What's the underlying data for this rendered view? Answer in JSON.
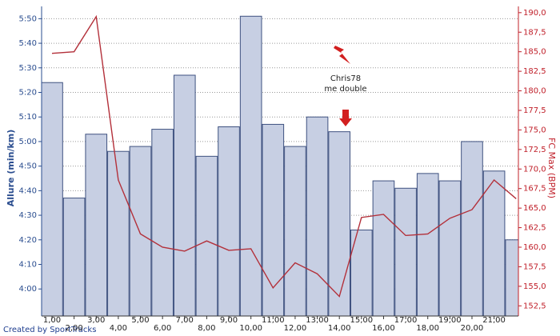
{
  "chart_data": {
    "type": "bar",
    "ylabel": "Allure (min/km)",
    "y2label": "FC Max (BPM)",
    "x": [
      1,
      2,
      3,
      4,
      5,
      6,
      7,
      8,
      9,
      10,
      11,
      12,
      13,
      14,
      15,
      16,
      17,
      18,
      19,
      20,
      21,
      22
    ],
    "xlim": [
      0.53,
      22.1
    ],
    "xticks": [
      {
        "value": 1,
        "label": "1,00"
      },
      {
        "value": 2,
        "label": "2,00"
      },
      {
        "value": 3,
        "label": "3,00"
      },
      {
        "value": 4,
        "label": "4,00"
      },
      {
        "value": 5,
        "label": "5,00"
      },
      {
        "value": 6,
        "label": "6,00"
      },
      {
        "value": 7,
        "label": "7,00"
      },
      {
        "value": 8,
        "label": "8,00"
      },
      {
        "value": 9,
        "label": "9,00"
      },
      {
        "value": 10,
        "label": "10,00"
      },
      {
        "value": 11,
        "label": "11,00"
      },
      {
        "value": 12,
        "label": "12,00"
      },
      {
        "value": 13,
        "label": "13,00"
      },
      {
        "value": 14,
        "label": "14,00"
      },
      {
        "value": 15,
        "label": "15,00"
      },
      {
        "value": 16,
        "label": "16,00"
      },
      {
        "value": 17,
        "label": "17,00"
      },
      {
        "value": 18,
        "label": "18,00"
      },
      {
        "value": 19,
        "label": "19,00"
      },
      {
        "value": 20,
        "label": "20,00"
      },
      {
        "value": 21,
        "label": "21,00"
      }
    ],
    "ylim": [
      229,
      355
    ],
    "yticks": [
      {
        "value": 240,
        "label": "4:00"
      },
      {
        "value": 250,
        "label": "4:10"
      },
      {
        "value": 260,
        "label": "4:20"
      },
      {
        "value": 270,
        "label": "4:30"
      },
      {
        "value": 280,
        "label": "4:40"
      },
      {
        "value": 290,
        "label": "4:50"
      },
      {
        "value": 300,
        "label": "5:00"
      },
      {
        "value": 310,
        "label": "5:10"
      },
      {
        "value": 320,
        "label": "5:20"
      },
      {
        "value": 330,
        "label": "5:30"
      },
      {
        "value": 340,
        "label": "5:40"
      },
      {
        "value": 350,
        "label": "5:50"
      }
    ],
    "y2lim": [
      151.2,
      190.8
    ],
    "y2ticks": [
      {
        "value": 152.5,
        "label": "152,5"
      },
      {
        "value": 155,
        "label": "155,0"
      },
      {
        "value": 157.5,
        "label": "157,5"
      },
      {
        "value": 160,
        "label": "160,0"
      },
      {
        "value": 162.5,
        "label": "162,5"
      },
      {
        "value": 165,
        "label": "165,0"
      },
      {
        "value": 167.5,
        "label": "167,5"
      },
      {
        "value": 170,
        "label": "170,0"
      },
      {
        "value": 172.5,
        "label": "172,5"
      },
      {
        "value": 175,
        "label": "175,0"
      },
      {
        "value": 177.5,
        "label": "177,5"
      },
      {
        "value": 180,
        "label": "180,0"
      },
      {
        "value": 182.5,
        "label": "182,5"
      },
      {
        "value": 185,
        "label": "185,0"
      },
      {
        "value": 187.5,
        "label": "187,5"
      },
      {
        "value": 190,
        "label": "190,0"
      }
    ],
    "grid": true,
    "series": [
      {
        "type": "bar",
        "color": "#c7cfe3",
        "edge": "#3f5280",
        "values": [
          324,
          277,
          303,
          296,
          298,
          305,
          327,
          294,
          306,
          351,
          307,
          298,
          310,
          304,
          264,
          284,
          281,
          287,
          284,
          300,
          288,
          260
        ]
      },
      {
        "type": "line",
        "axis": "y2",
        "color": "#b3303a",
        "values": [
          184.8,
          185.0,
          189.5,
          168.6,
          161.7,
          160.0,
          159.5,
          160.8,
          159.6,
          159.8,
          154.8,
          158.0,
          156.6,
          153.7,
          163.8,
          164.2,
          161.5,
          161.7,
          163.7,
          164.8,
          168.6,
          166.2
        ]
      }
    ],
    "annotations": [
      "Chris78",
      "me double"
    ],
    "footer": "Created by SportTracks"
  }
}
